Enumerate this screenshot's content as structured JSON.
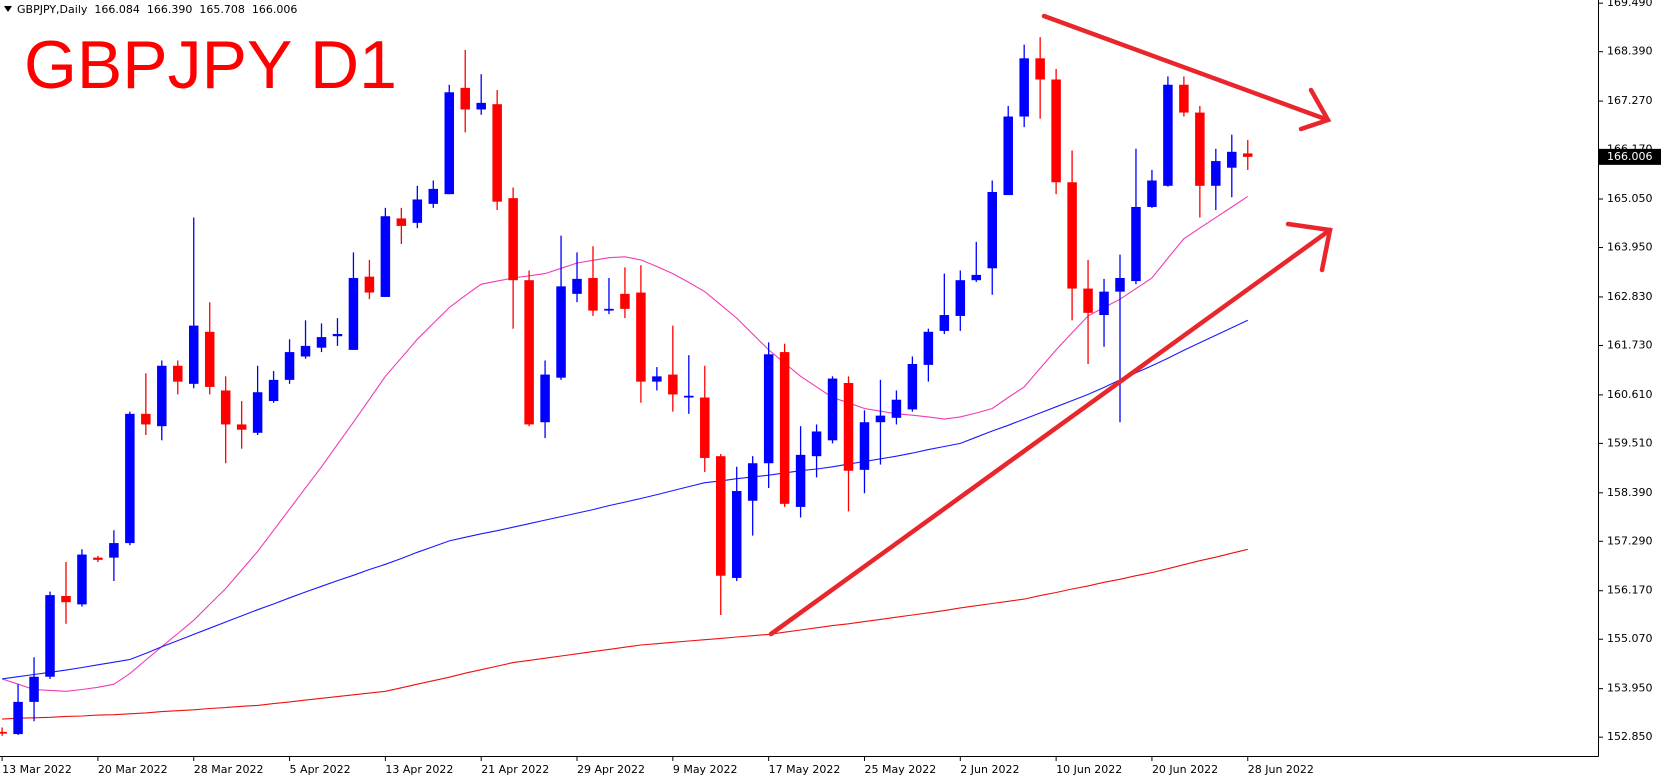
{
  "chart_data": {
    "type": "candlestick",
    "title": "GBPJPY D1",
    "header": "GBPJPY,Daily",
    "header_prices": [
      "166.084",
      "166.390",
      "165.708",
      "166.006"
    ],
    "current_price": {
      "value": 166.006,
      "label": "166.006"
    },
    "up_color": "#0000ff",
    "down_color": "#ff0000",
    "categories": [
      "13 Mar 2022",
      null,
      null,
      null,
      null,
      null,
      "20 Mar 2022",
      null,
      null,
      null,
      null,
      null,
      "28 Mar 2022",
      null,
      null,
      null,
      null,
      null,
      "5 Apr 2022",
      null,
      null,
      null,
      null,
      null,
      "13 Apr 2022",
      null,
      null,
      null,
      null,
      null,
      "21 Apr 2022",
      null,
      null,
      null,
      null,
      null,
      "29 Apr 2022",
      null,
      null,
      null,
      null,
      null,
      "9 May 2022",
      null,
      null,
      null,
      null,
      null,
      "17 May 2022",
      null,
      null,
      null,
      null,
      null,
      "25 May 2022",
      null,
      null,
      null,
      null,
      null,
      "2 Jun 2022",
      null,
      null,
      null,
      null,
      null,
      "10 Jun 2022",
      null,
      null,
      null,
      null,
      null,
      "20 Jun 2022",
      null,
      null,
      null,
      null,
      null,
      "28 Jun 2022"
    ],
    "open": [
      152.97,
      152.92,
      153.65,
      154.22,
      156.05,
      155.86,
      156.92,
      156.92,
      157.25,
      160.18,
      159.9,
      161.27,
      160.86,
      162.04,
      160.71,
      159.94,
      159.75,
      160.47,
      160.95,
      161.48,
      161.68,
      161.94,
      161.63,
      163.29,
      162.83,
      164.61,
      164.51,
      164.94,
      165.16,
      167.57,
      167.08,
      167.2,
      165.07,
      163.21,
      159.99,
      161.0,
      162.9,
      163.26,
      162.52,
      162.9,
      162.93,
      160.91,
      161.07,
      160.55,
      160.55,
      159.22,
      156.46,
      158.21,
      159.06,
      161.58,
      158.07,
      159.22,
      159.58,
      160.88,
      158.91,
      159.99,
      160.09,
      160.28,
      161.29,
      162.06,
      162.4,
      163.21,
      163.48,
      165.14,
      166.92,
      168.24,
      167.76,
      165.43,
      163.02,
      162.42,
      162.95,
      163.19,
      164.87,
      165.35,
      167.64,
      167.01,
      165.35,
      165.76,
      166.084
    ],
    "high": [
      153.07,
      154.05,
      154.66,
      156.15,
      156.82,
      157.11,
      156.96,
      157.54,
      160.23,
      161.1,
      161.39,
      161.39,
      164.63,
      162.71,
      161.03,
      160.47,
      161.27,
      161.15,
      161.87,
      162.3,
      162.23,
      162.35,
      163.84,
      163.67,
      164.85,
      164.85,
      165.35,
      165.47,
      167.64,
      168.43,
      167.88,
      167.52,
      165.31,
      163.43,
      161.39,
      164.22,
      163.84,
      163.98,
      163.26,
      163.5,
      163.55,
      161.24,
      162.18,
      161.51,
      161.27,
      159.27,
      158.98,
      159.22,
      161.8,
      161.77,
      159.9,
      159.94,
      161.03,
      161.03,
      160.26,
      160.95,
      160.71,
      161.48,
      162.11,
      163.36,
      163.43,
      164.08,
      165.47,
      167.16,
      168.55,
      168.72,
      168.0,
      166.15,
      163.67,
      163.24,
      163.79,
      166.19,
      165.71,
      167.83,
      167.83,
      167.16,
      166.19,
      166.51,
      166.39
    ],
    "low": [
      152.88,
      152.9,
      153.21,
      154.17,
      155.42,
      155.81,
      156.82,
      156.39,
      157.2,
      159.7,
      159.58,
      160.62,
      160.76,
      160.62,
      159.06,
      159.39,
      159.7,
      160.43,
      160.86,
      161.43,
      161.58,
      161.72,
      161.63,
      162.78,
      162.83,
      164.03,
      164.39,
      164.85,
      165.16,
      166.56,
      166.96,
      164.8,
      162.11,
      159.9,
      159.63,
      160.95,
      162.71,
      162.4,
      162.44,
      162.35,
      160.43,
      160.71,
      160.23,
      160.18,
      158.86,
      155.62,
      156.39,
      157.42,
      158.5,
      158.07,
      157.83,
      158.74,
      159.51,
      157.97,
      158.38,
      159.03,
      159.94,
      160.23,
      160.91,
      161.99,
      162.06,
      163.17,
      162.88,
      165.14,
      166.68,
      166.87,
      165.16,
      162.3,
      161.31,
      161.7,
      159.99,
      163.12,
      164.85,
      165.33,
      166.92,
      164.63,
      164.8,
      165.09,
      165.708
    ],
    "close": [
      152.93,
      153.65,
      154.22,
      156.07,
      155.91,
      156.99,
      156.87,
      157.25,
      160.18,
      159.94,
      161.27,
      160.91,
      162.18,
      160.79,
      159.94,
      159.82,
      160.67,
      160.95,
      161.58,
      161.72,
      161.92,
      161.99,
      163.26,
      162.93,
      164.66,
      164.44,
      165.04,
      165.28,
      167.47,
      167.08,
      167.23,
      164.99,
      163.21,
      159.94,
      161.07,
      163.07,
      163.24,
      162.52,
      162.56,
      162.56,
      160.91,
      161.03,
      160.62,
      160.59,
      159.18,
      156.51,
      158.43,
      159.06,
      161.53,
      158.14,
      159.25,
      159.78,
      160.98,
      158.89,
      159.99,
      160.14,
      160.5,
      161.31,
      162.04,
      162.42,
      163.21,
      163.33,
      165.21,
      166.92,
      168.24,
      167.76,
      165.43,
      163.02,
      162.47,
      162.95,
      163.26,
      164.87,
      165.47,
      167.64,
      167.01,
      165.35,
      165.91,
      166.12,
      166.006
    ],
    "series": [
      {
        "color": "#f03cb4",
        "values": [
          154.17,
          154.05,
          153.93,
          153.91,
          153.89,
          153.93,
          153.98,
          154.05,
          154.29,
          154.6,
          154.9,
          155.2,
          155.5,
          155.86,
          156.22,
          156.64,
          157.06,
          157.54,
          158.02,
          158.5,
          158.98,
          159.49,
          159.99,
          160.51,
          161.03,
          161.45,
          161.87,
          162.23,
          162.59,
          162.86,
          163.12,
          163.19,
          163.26,
          163.31,
          163.36,
          163.48,
          163.6,
          163.66,
          163.72,
          163.74,
          163.67,
          163.52,
          163.36,
          163.16,
          162.95,
          162.65,
          162.35,
          161.99,
          161.63,
          161.33,
          161.03,
          160.79,
          160.55,
          160.43,
          160.3,
          160.24,
          160.18,
          160.15,
          160.11,
          160.06,
          160.11,
          160.2,
          160.3,
          160.55,
          160.79,
          161.21,
          161.63,
          162.02,
          162.4,
          162.59,
          162.78,
          163.02,
          163.26,
          163.71,
          164.15,
          164.39,
          164.63,
          164.87,
          165.11
        ]
      },
      {
        "color": "#1a1aff",
        "values": [
          154.17,
          154.22,
          154.27,
          154.32,
          154.37,
          154.43,
          154.49,
          154.55,
          154.61,
          154.75,
          154.9,
          155.04,
          155.18,
          155.32,
          155.46,
          155.6,
          155.74,
          155.87,
          156.01,
          156.14,
          156.27,
          156.4,
          156.52,
          156.65,
          156.77,
          156.9,
          157.04,
          157.17,
          157.3,
          157.38,
          157.46,
          157.53,
          157.61,
          157.69,
          157.77,
          157.85,
          157.93,
          158.01,
          158.1,
          158.18,
          158.26,
          158.35,
          158.44,
          158.53,
          158.62,
          158.66,
          158.71,
          158.75,
          158.79,
          158.84,
          158.89,
          158.93,
          158.98,
          159.04,
          159.1,
          159.16,
          159.22,
          159.29,
          159.37,
          159.44,
          159.51,
          159.65,
          159.79,
          159.92,
          160.06,
          160.2,
          160.34,
          160.48,
          160.62,
          160.78,
          160.95,
          161.11,
          161.27,
          161.44,
          161.62,
          161.79,
          161.96,
          162.13,
          162.3
        ]
      },
      {
        "color": "#ee1111",
        "values": [
          153.26,
          153.28,
          153.29,
          153.3,
          153.32,
          153.33,
          153.35,
          153.36,
          153.38,
          153.4,
          153.43,
          153.45,
          153.47,
          153.5,
          153.52,
          153.55,
          153.57,
          153.61,
          153.65,
          153.69,
          153.73,
          153.77,
          153.81,
          153.85,
          153.89,
          153.97,
          154.05,
          154.13,
          154.21,
          154.3,
          154.38,
          154.46,
          154.54,
          154.59,
          154.64,
          154.69,
          154.74,
          154.79,
          154.84,
          154.89,
          154.94,
          154.97,
          155.0,
          155.03,
          155.06,
          155.09,
          155.12,
          155.15,
          155.18,
          155.23,
          155.28,
          155.33,
          155.38,
          155.42,
          155.47,
          155.52,
          155.57,
          155.62,
          155.67,
          155.72,
          155.78,
          155.83,
          155.88,
          155.93,
          155.98,
          156.06,
          156.13,
          156.21,
          156.28,
          156.36,
          156.43,
          156.51,
          156.58,
          156.67,
          156.76,
          156.85,
          156.93,
          157.02,
          157.11
        ]
      }
    ],
    "ylim": [
      152.423,
      169.562
    ],
    "yticks": [
      {
        "value": 169.49,
        "label": "169.490"
      },
      {
        "value": 168.39,
        "label": "168.390"
      },
      {
        "value": 167.27,
        "label": "167.270"
      },
      {
        "value": 166.17,
        "label": "166.170"
      },
      {
        "value": 165.05,
        "label": "165.050"
      },
      {
        "value": 163.95,
        "label": "163.950"
      },
      {
        "value": 162.83,
        "label": "162.830"
      },
      {
        "value": 161.73,
        "label": "161.730"
      },
      {
        "value": 160.61,
        "label": "160.610"
      },
      {
        "value": 159.51,
        "label": "159.510"
      },
      {
        "value": 158.39,
        "label": "158.390"
      },
      {
        "value": 157.29,
        "label": "157.290"
      },
      {
        "value": 156.17,
        "label": "156.170"
      },
      {
        "value": 155.07,
        "label": "155.070"
      },
      {
        "value": 153.95,
        "label": "153.950"
      },
      {
        "value": 152.85,
        "label": "152.850"
      }
    ],
    "grid": false
  }
}
